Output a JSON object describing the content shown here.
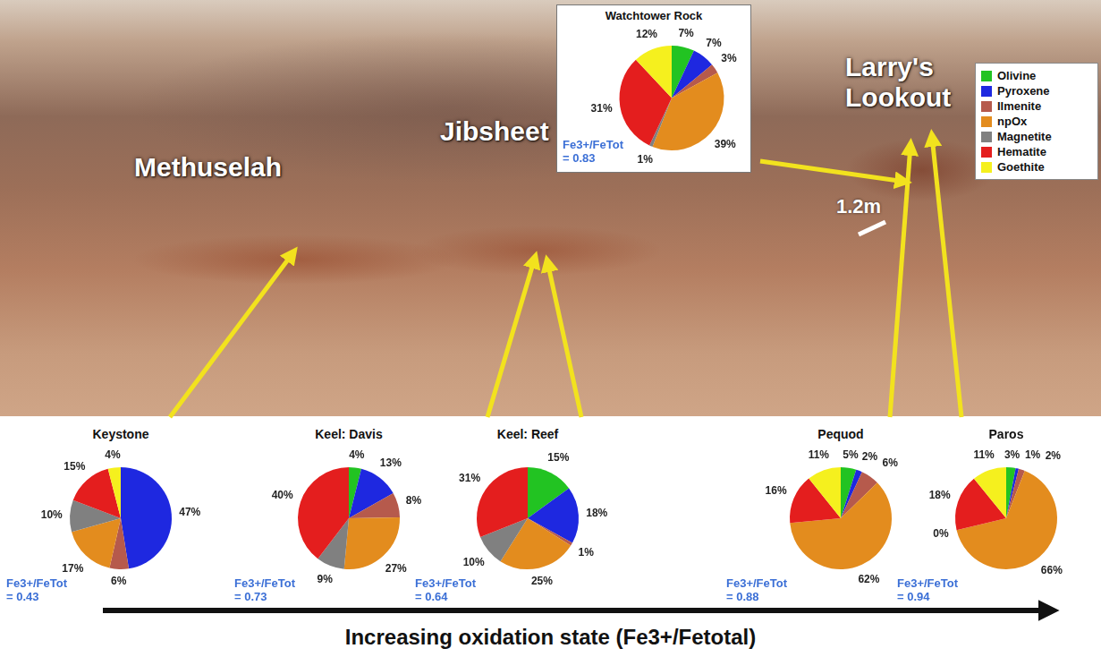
{
  "chart_data": [
    {
      "type": "pie",
      "title": "Watchtower Rock",
      "categories": [
        "Olivine",
        "Pyroxene",
        "Ilmenite",
        "npOx",
        "Magnetite",
        "Hematite",
        "Goethite"
      ],
      "values": [
        7,
        7,
        3,
        39,
        1,
        31,
        12
      ],
      "value_labels": [
        "7%",
        "7%",
        "3%",
        "39%",
        "1%",
        "31%",
        "12%"
      ],
      "colors": [
        "#22c322",
        "#1e28e0",
        "#b65a4c",
        "#e38c1e",
        "#808080",
        "#e41e1e",
        "#f5f01e"
      ],
      "data_labels": true,
      "annotation": "Fe3+/FeTot = 0.83"
    },
    {
      "type": "pie",
      "title": "Keystone",
      "categories": [
        "Pyroxene",
        "Ilmenite",
        "npOx",
        "Magnetite",
        "Hematite",
        "Goethite"
      ],
      "values": [
        47,
        6,
        17,
        10,
        15,
        4
      ],
      "value_labels": [
        "47%",
        "6%",
        "17%",
        "10%",
        "15%",
        "4%"
      ],
      "colors": [
        "#1e28e0",
        "#b65a4c",
        "#e38c1e",
        "#808080",
        "#e41e1e",
        "#f5f01e"
      ],
      "data_labels": true,
      "annotation": "Fe3+/FeTot = 0.43"
    },
    {
      "type": "pie",
      "title": "Keel: Davis",
      "categories": [
        "Olivine",
        "Pyroxene",
        "Ilmenite",
        "npOx",
        "Magnetite",
        "Hematite"
      ],
      "values": [
        4,
        13,
        8,
        27,
        9,
        40
      ],
      "value_labels": [
        "4%",
        "13%",
        "8%",
        "27%",
        "9%",
        "40%"
      ],
      "colors": [
        "#22c322",
        "#1e28e0",
        "#b65a4c",
        "#e38c1e",
        "#808080",
        "#e41e1e"
      ],
      "data_labels": true,
      "annotation": "Fe3+/FeTot = 0.73"
    },
    {
      "type": "pie",
      "title": "Keel: Reef",
      "categories": [
        "Olivine",
        "Pyroxene",
        "Ilmenite",
        "npOx",
        "Magnetite",
        "Hematite"
      ],
      "values": [
        15,
        18,
        1,
        25,
        10,
        31
      ],
      "value_labels": [
        "15%",
        "18%",
        "1%",
        "25%",
        "10%",
        "31%"
      ],
      "colors": [
        "#22c322",
        "#1e28e0",
        "#b65a4c",
        "#e38c1e",
        "#808080",
        "#e41e1e"
      ],
      "data_labels": true,
      "annotation": "Fe3+/FeTot = 0.64"
    },
    {
      "type": "pie",
      "title": "Pequod",
      "categories": [
        "Olivine",
        "Pyroxene",
        "Ilmenite",
        "npOx",
        "Hematite",
        "Goethite"
      ],
      "values": [
        5,
        2,
        6,
        62,
        16,
        11
      ],
      "value_labels": [
        "5%",
        "2%",
        "6%",
        "62%",
        "16%",
        "11%"
      ],
      "colors": [
        "#22c322",
        "#1e28e0",
        "#b65a4c",
        "#e38c1e",
        "#e41e1e",
        "#f5f01e"
      ],
      "data_labels": true,
      "annotation": "Fe3+/FeTot = 0.88"
    },
    {
      "type": "pie",
      "title": "Paros",
      "categories": [
        "Olivine",
        "Pyroxene",
        "Ilmenite",
        "npOx",
        "Magnetite",
        "Hematite",
        "Goethite"
      ],
      "values": [
        3,
        1,
        2,
        66,
        0,
        18,
        11
      ],
      "value_labels": [
        "3%",
        "1%",
        "2%",
        "66%",
        "0%",
        "18%",
        "11%"
      ],
      "colors": [
        "#22c322",
        "#1e28e0",
        "#b65a4c",
        "#e38c1e",
        "#808080",
        "#e41e1e",
        "#f5f01e"
      ],
      "data_labels": true,
      "annotation": "Fe3+/FeTot = 0.94"
    }
  ],
  "figure": {
    "site_labels": [
      "Methuselah",
      "Jibsheet",
      "Larry's Lookout"
    ],
    "scale_bar": "1.2m",
    "axis_label": "Increasing oxidation state (Fe3+/Fetotal)",
    "legend": "top-right",
    "legend_entries": [
      {
        "name": "Olivine",
        "color": "#22c322"
      },
      {
        "name": "Pyroxene",
        "color": "#1e28e0"
      },
      {
        "name": "Ilmenite",
        "color": "#b65a4c"
      },
      {
        "name": "npOx",
        "color": "#e38c1e"
      },
      {
        "name": "Magnetite",
        "color": "#808080"
      },
      {
        "name": "Hematite",
        "color": "#e41e1e"
      },
      {
        "name": "Goethite",
        "color": "#f5f01e"
      }
    ]
  }
}
